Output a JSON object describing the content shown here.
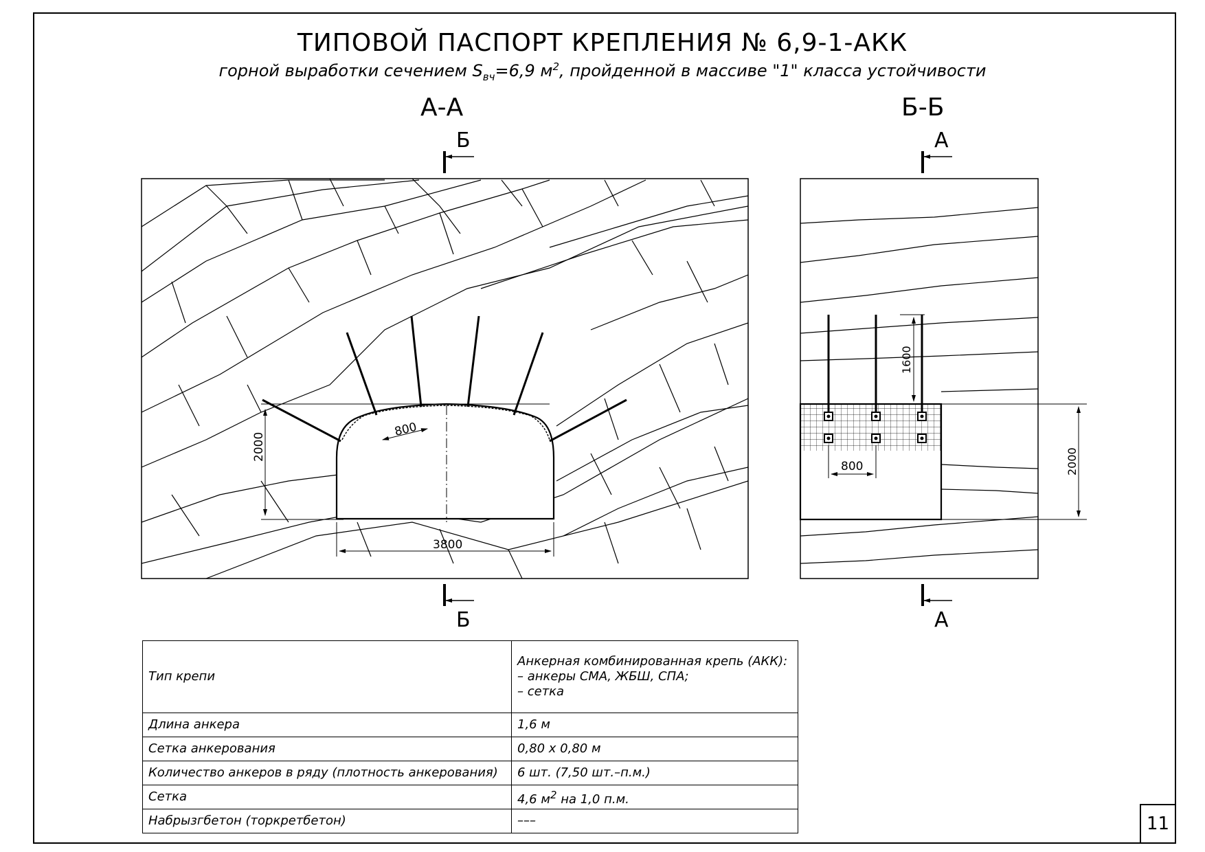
{
  "title": "ТИПОВОЙ ПАСПОРТ КРЕПЛЕНИЯ № 6,9-1-АКК",
  "subtitle": {
    "before": "горной выработки сечением S",
    "sub": "вч",
    "middle": "=6,9 м",
    "sup": "2",
    "after": ", пройденной в массиве \"1\" класса устойчивости"
  },
  "sections": {
    "aa": {
      "label": "А-А",
      "cut_top": "Б",
      "cut_bottom": "Б",
      "dims": {
        "height": "2000",
        "spacing": "800",
        "width": "3800"
      }
    },
    "bb": {
      "label": "Б-Б",
      "cut_top": "А",
      "cut_bottom": "А",
      "dims": {
        "anchor_length": "1600",
        "spacing": "800",
        "height": "2000"
      }
    }
  },
  "spec_table": [
    {
      "param": "Тип крепи",
      "value": "Анкерная комбинированная крепь (АКК):\n– анкеры СМА, ЖБШ, СПА;\n– сетка"
    },
    {
      "param": "Длина анкера",
      "value": "1,6 м"
    },
    {
      "param": "Сетка анкерования",
      "value": "0,80 х 0,80 м"
    },
    {
      "param": "Количество анкеров в ряду (плотность анкерования)",
      "value": "6 шт. (7,50 шт.–п.м.)"
    },
    {
      "param": "Сетка",
      "value": "4,6 м",
      "value_sup": "2",
      "value_after": " на 1,0 п.м."
    },
    {
      "param": "Набрызгбетон (торкретбетон)",
      "value": "–––"
    }
  ],
  "page_number": "11"
}
